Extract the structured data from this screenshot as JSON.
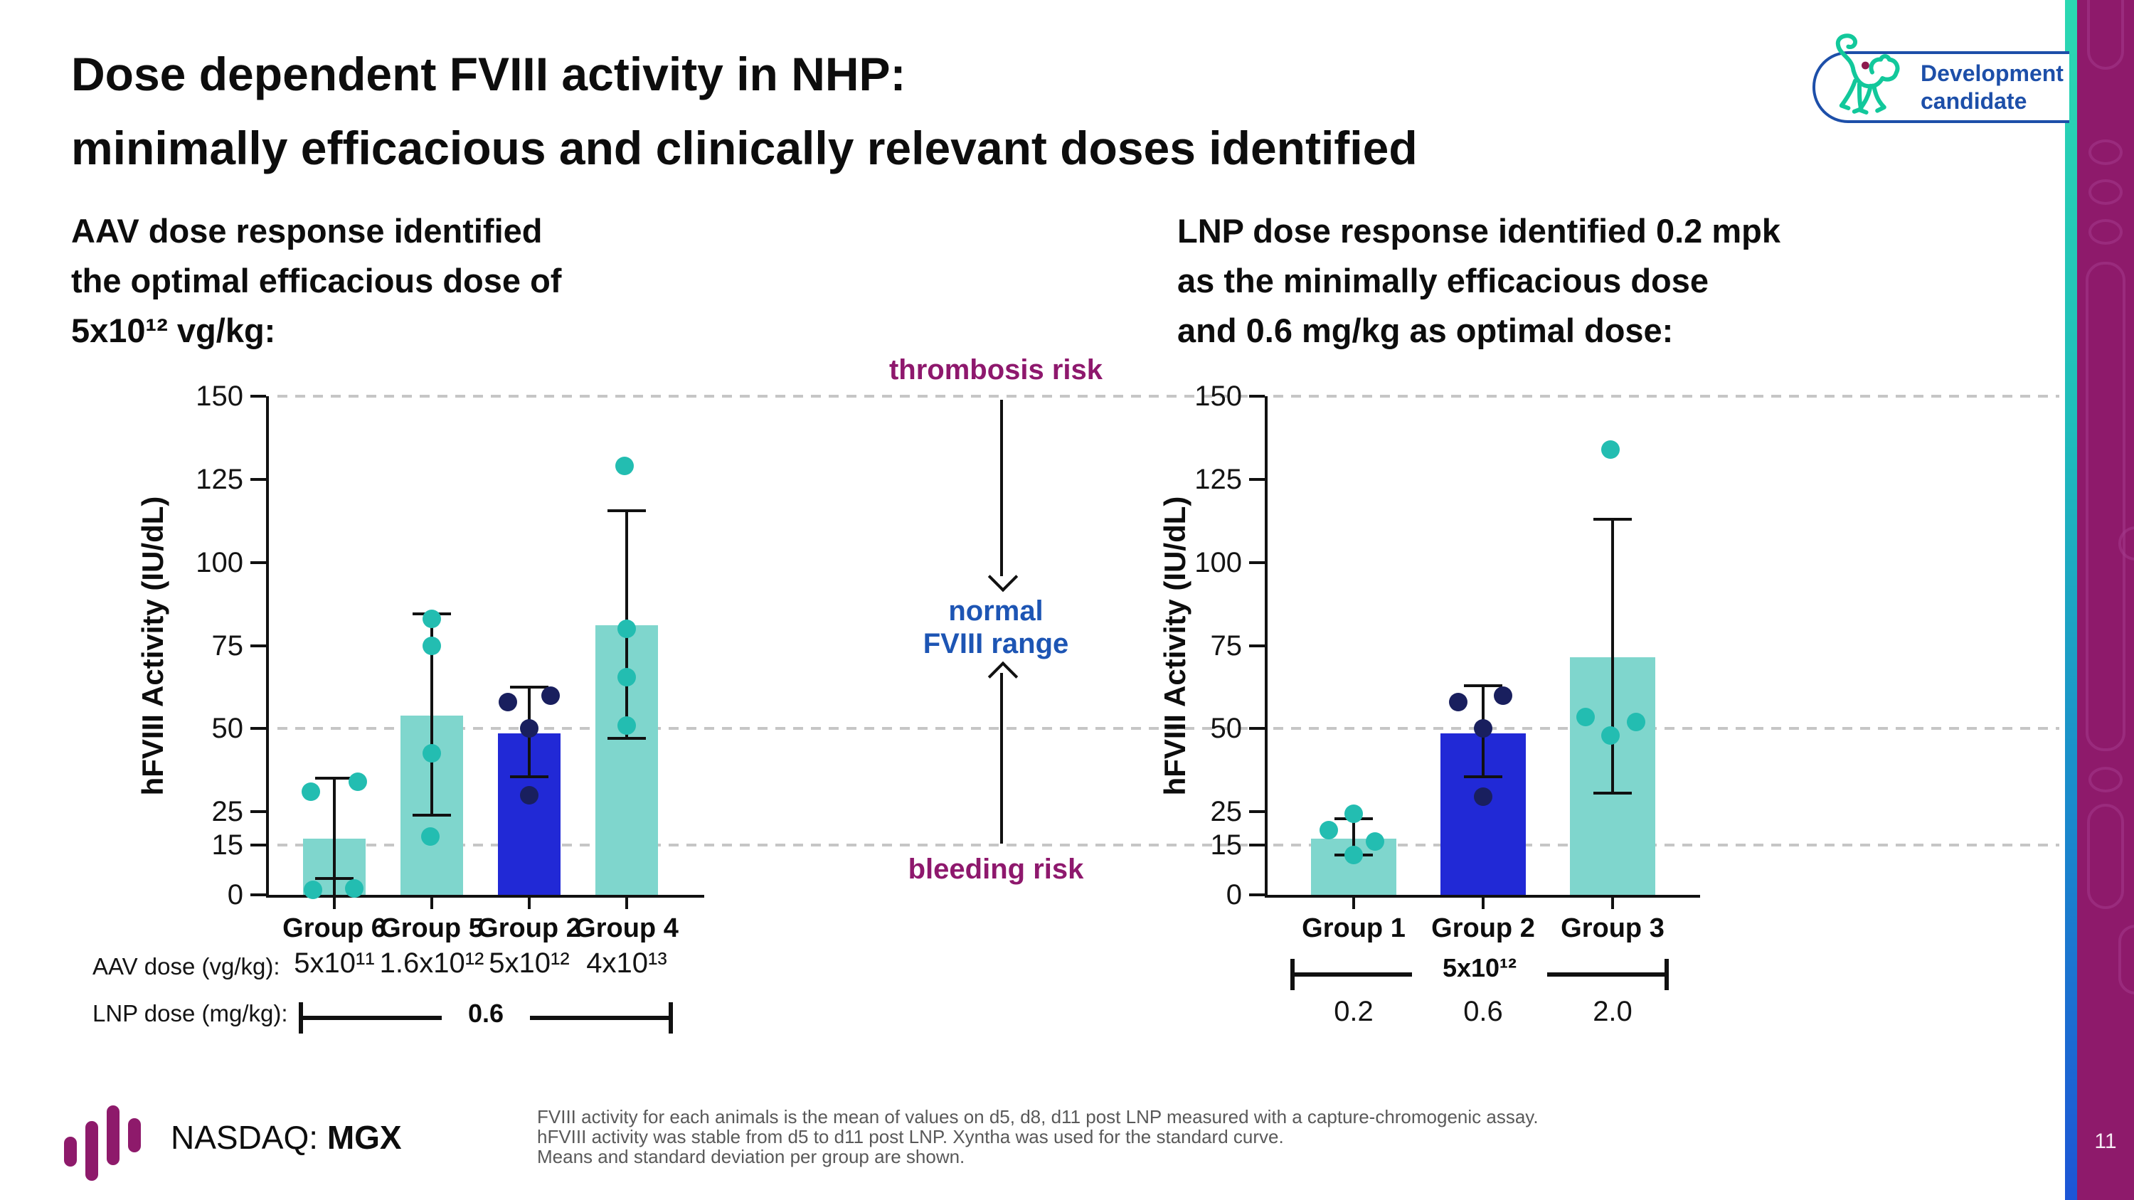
{
  "slide": {
    "title_lines": [
      "Dose dependent FVIII activity in NHP:",
      "minimally efficacious and clinically relevant doses identified"
    ],
    "page_number": "11"
  },
  "badge": {
    "label_lines": [
      "Development",
      "candidate"
    ]
  },
  "statements": {
    "left_lines": [
      "AAV dose response identified",
      "the optimal efficacious dose of",
      "5x10¹² vg/kg:"
    ],
    "right_lines": [
      "LNP dose response identified 0.2 mpk",
      "as the minimally efficacious dose",
      "and 0.6 mg/kg as optimal dose:"
    ]
  },
  "annotations": {
    "top": "thrombosis risk",
    "middle_lines": [
      "normal",
      "FVIII range"
    ],
    "bottom": "bleeding risk"
  },
  "footer": {
    "exchange_prefix": "NASDAQ:",
    "ticker": "MGX",
    "notes": [
      "FVIII activity for each animals is the mean of values on d5, d8, d11 post LNP measured with a capture-chromogenic assay.",
      "hFVIII activity was stable from d5 to d11 post LNP. Xyntha was used for the standard curve.",
      "Means and standard deviation per group are shown."
    ]
  },
  "colors": {
    "teal_bar": "#7fd6cd",
    "blue_bar": "#2129d6",
    "teal_point": "#23bdb1",
    "navy_point": "#191f5e",
    "risk_text": "#8e186d",
    "range_text": "#1d55b4",
    "badge_blue": "#1d4fa9",
    "brand_purple": "#8e1a6b",
    "grid_gray": "#c6c6c6"
  },
  "chart_data": [
    {
      "type": "bar",
      "title": "AAV dose response (NHP)",
      "ylabel": "hFVIII Activity (IU/dL)",
      "ylim": [
        0,
        150
      ],
      "yticks": [
        0,
        15,
        25,
        50,
        75,
        100,
        125,
        150
      ],
      "gridlines": [
        15,
        50,
        150
      ],
      "grid": true,
      "legend": "none",
      "categories": [
        "Group 6",
        "Group 5",
        "Group 2",
        "Group 4"
      ],
      "bar_values": [
        16.9,
        54,
        48.5,
        81
      ],
      "bar_colors": [
        "teal",
        "teal",
        "blue",
        "teal"
      ],
      "error_bars": [
        {
          "line": [
            -2,
            35
          ],
          "caps": [
            5,
            35
          ]
        },
        {
          "line": [
            24,
            84.5
          ],
          "caps": [
            24,
            84.5
          ]
        },
        {
          "line": [
            35.5,
            62.5
          ],
          "caps": [
            35.5,
            62.5
          ]
        },
        {
          "line": [
            47,
            115.5
          ],
          "caps": [
            47,
            115.5
          ]
        }
      ],
      "points": [
        [
          [
            31,
            -33
          ],
          [
            34,
            33
          ],
          [
            1.5,
            -30
          ],
          [
            2,
            28
          ]
        ],
        [
          [
            83,
            0
          ],
          [
            75,
            0
          ],
          [
            42.5,
            0
          ],
          [
            17.5,
            -2
          ]
        ],
        [
          [
            58,
            -30
          ],
          [
            60,
            30
          ],
          [
            50,
            0
          ],
          [
            30,
            0
          ]
        ],
        [
          [
            129,
            -3
          ],
          [
            80,
            0
          ],
          [
            65.5,
            0
          ],
          [
            51,
            0
          ]
        ]
      ],
      "aav": {
        "label": "AAV dose (vg/kg):",
        "values": [
          "5x10¹¹",
          "1.6x10¹²",
          "5x10¹²",
          "4x10¹³"
        ]
      },
      "lnp": {
        "label": "LNP dose (mg/kg):",
        "bracket": "0.6"
      }
    },
    {
      "type": "bar",
      "title": "LNP dose response (NHP)",
      "ylabel": "hFVIII Activity (IU/dL)",
      "ylim": [
        0,
        150
      ],
      "yticks": [
        0,
        15,
        25,
        50,
        75,
        100,
        125,
        150
      ],
      "gridlines": [
        15,
        50,
        150
      ],
      "grid": true,
      "legend": "none",
      "categories": [
        "Group 1",
        "Group 2",
        "Group 3"
      ],
      "bar_values": [
        17,
        48.5,
        71.5
      ],
      "bar_colors": [
        "teal",
        "blue",
        "teal"
      ],
      "error_bars": [
        {
          "line": [
            12,
            23
          ],
          "caps": [
            12,
            23
          ]
        },
        {
          "line": [
            35.5,
            63
          ],
          "caps": [
            35.5,
            63
          ]
        },
        {
          "line": [
            30.5,
            113
          ],
          "caps": [
            30.5,
            113
          ]
        }
      ],
      "points": [
        [
          [
            24.5,
            0
          ],
          [
            19.5,
            -35
          ],
          [
            16,
            30
          ],
          [
            12,
            0
          ]
        ],
        [
          [
            58,
            -35
          ],
          [
            60,
            28
          ],
          [
            50,
            0
          ],
          [
            29.5,
            0
          ]
        ],
        [
          [
            134,
            -3
          ],
          [
            53.5,
            -38
          ],
          [
            52,
            33
          ],
          [
            48,
            -3
          ]
        ]
      ],
      "aav": {
        "bracket": "5x10¹²"
      },
      "lnp": {
        "values": [
          "0.2",
          "0.6",
          "2.0"
        ]
      }
    }
  ]
}
